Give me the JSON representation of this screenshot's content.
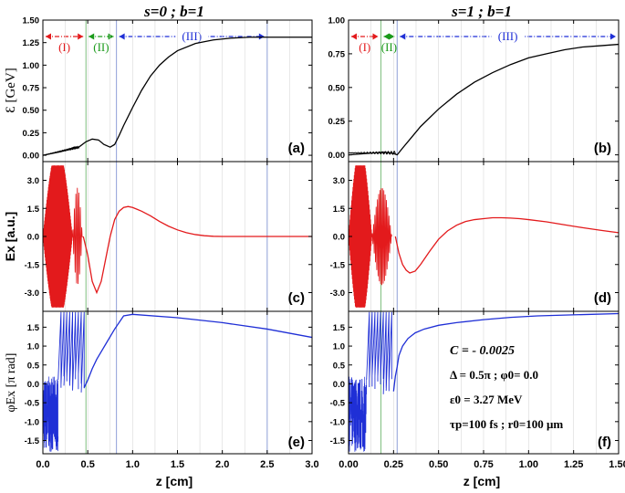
{
  "chart_data": [
    {
      "type": "line",
      "column": "left",
      "title": "s=0 ; b=1",
      "xlabel": "z [cm]",
      "xlim": [
        0,
        3.0
      ],
      "xticks": [
        "0.0",
        "0.5",
        "1.0",
        "1.5",
        "2.0",
        "2.5",
        "3.0"
      ],
      "region_boundaries": [
        0.48,
        0.82,
        2.5
      ],
      "panels": [
        {
          "id": "a",
          "panel_label": "(a)",
          "ylabel": "Ɛ [GeV]",
          "ylim": [
            -0.07,
            1.5
          ],
          "yticks": [
            "0.00",
            "0.25",
            "0.50",
            "0.75",
            "1.00",
            "1.25",
            "1.50"
          ],
          "regions": [
            {
              "label": "(I)",
              "x0": 0.0,
              "x1": 0.48,
              "color": "#e31a1c"
            },
            {
              "label": "(II)",
              "x0": 0.48,
              "x1": 0.82,
              "color": "#1a9a1a"
            },
            {
              "label": "(III)",
              "x0": 0.82,
              "x1": 2.5,
              "color": "#1f2fd6"
            }
          ],
          "series": [
            {
              "color": "#000000",
              "x": [
                0,
                0.1,
                0.2,
                0.3,
                0.35,
                0.4,
                0.48,
                0.55,
                0.62,
                0.68,
                0.75,
                0.8,
                0.85,
                0.9,
                1.0,
                1.1,
                1.2,
                1.3,
                1.4,
                1.5,
                1.7,
                1.9,
                2.1,
                2.3,
                2.5,
                3.0
              ],
              "y": [
                0.0,
                0.02,
                0.04,
                0.07,
                0.09,
                0.09,
                0.15,
                0.18,
                0.17,
                0.12,
                0.09,
                0.12,
                0.22,
                0.33,
                0.53,
                0.72,
                0.88,
                1.0,
                1.09,
                1.16,
                1.24,
                1.28,
                1.3,
                1.31,
                1.31,
                1.31
              ]
            }
          ]
        },
        {
          "id": "c",
          "panel_label": "(c)",
          "ylabel": "Ex [a.u.]",
          "ylim": [
            -4.0,
            4.0
          ],
          "yticks": [
            "-3.0",
            "-1.5",
            "0.0",
            "1.5",
            "3.0"
          ],
          "series": [
            {
              "color": "#e31a1c",
              "x": [
                0.45,
                0.5,
                0.55,
                0.6,
                0.65,
                0.7,
                0.75,
                0.8,
                0.85,
                0.9,
                0.95,
                1.0,
                1.05,
                1.1,
                1.2,
                1.3,
                1.4,
                1.5,
                1.6,
                1.7,
                1.8,
                1.9,
                2.0,
                2.2,
                2.5,
                3.0
              ],
              "y": [
                0.0,
                -1.0,
                -2.4,
                -3.0,
                -2.4,
                -1.2,
                0.0,
                0.9,
                1.35,
                1.55,
                1.6,
                1.55,
                1.45,
                1.35,
                1.1,
                0.8,
                0.55,
                0.35,
                0.2,
                0.1,
                0.04,
                0.01,
                0.0,
                0.0,
                0.0,
                0.0
              ]
            }
          ]
        },
        {
          "id": "e",
          "panel_label": "(e)",
          "ylabel": "φEx [π rad]",
          "ylim": [
            -1.85,
            1.92
          ],
          "yticks": [
            "-1.5",
            "-1.0",
            "-0.5",
            "0.0",
            "0.5",
            "1.0",
            "1.5"
          ],
          "series": [
            {
              "color": "#1f2fd6",
              "x": [
                0.46,
                0.5,
                0.55,
                0.6,
                0.7,
                0.8,
                0.9,
                1.0,
                1.5,
                2.0,
                2.5,
                3.0
              ],
              "y": [
                -0.1,
                0.1,
                0.4,
                0.65,
                1.05,
                1.45,
                1.8,
                1.84,
                1.75,
                1.62,
                1.45,
                1.23
              ]
            }
          ]
        }
      ]
    },
    {
      "type": "line",
      "column": "right",
      "title": "s=1 ; b=1",
      "xlabel": "z [cm]",
      "xlim": [
        0,
        1.5
      ],
      "xticks": [
        "0.00",
        "0.25",
        "0.50",
        "0.75",
        "1.00",
        "1.25",
        "1.50"
      ],
      "region_boundaries": [
        0.18,
        0.27
      ],
      "panels": [
        {
          "id": "b",
          "panel_label": "(b)",
          "ylabel": "",
          "ylim": [
            -0.05,
            1.0
          ],
          "yticks": [
            "0.00",
            "0.25",
            "0.50",
            "0.75",
            "1.00"
          ],
          "regions": [
            {
              "label": "(I)",
              "x0": 0.0,
              "x1": 0.18,
              "color": "#e31a1c"
            },
            {
              "label": "(II)",
              "x0": 0.18,
              "x1": 0.27,
              "color": "#1a9a1a"
            },
            {
              "label": "(III)",
              "x0": 0.27,
              "x1": 1.5,
              "color": "#1f2fd6"
            }
          ],
          "series": [
            {
              "color": "#000000",
              "x": [
                0,
                0.05,
                0.1,
                0.15,
                0.2,
                0.25,
                0.27,
                0.3,
                0.35,
                0.4,
                0.5,
                0.6,
                0.7,
                0.8,
                0.9,
                1.0,
                1.1,
                1.2,
                1.3,
                1.4,
                1.5
              ],
              "y": [
                0.0,
                0.005,
                0.01,
                0.015,
                0.02,
                0.01,
                0.0,
                0.05,
                0.13,
                0.21,
                0.34,
                0.45,
                0.54,
                0.61,
                0.67,
                0.72,
                0.75,
                0.78,
                0.8,
                0.81,
                0.82
              ]
            }
          ]
        },
        {
          "id": "d",
          "panel_label": "(d)",
          "ylabel": "",
          "ylim": [
            -4.0,
            4.0
          ],
          "yticks": [
            "-3.0",
            "-1.5",
            "0.0",
            "1.5",
            "3.0"
          ],
          "series": [
            {
              "color": "#e31a1c",
              "x": [
                0.26,
                0.28,
                0.3,
                0.32,
                0.34,
                0.37,
                0.4,
                0.45,
                0.5,
                0.55,
                0.6,
                0.65,
                0.7,
                0.75,
                0.8,
                0.85,
                0.9,
                0.95,
                1.0,
                1.1,
                1.2,
                1.3,
                1.4,
                1.5
              ],
              "y": [
                0.0,
                -0.9,
                -1.5,
                -1.8,
                -1.95,
                -1.85,
                -1.5,
                -0.8,
                -0.15,
                0.3,
                0.6,
                0.8,
                0.9,
                0.95,
                1.0,
                1.0,
                0.98,
                0.95,
                0.9,
                0.78,
                0.62,
                0.47,
                0.33,
                0.2
              ]
            }
          ]
        },
        {
          "id": "f",
          "panel_label": "(f)",
          "ylabel": "",
          "ylim": [
            -1.85,
            1.92
          ],
          "yticks": [
            "-1.5",
            "-1.0",
            "-0.5",
            "0.0",
            "0.5",
            "1.0",
            "1.5"
          ],
          "series": [
            {
              "color": "#1f2fd6",
              "x": [
                0.25,
                0.26,
                0.27,
                0.28,
                0.3,
                0.33,
                0.37,
                0.42,
                0.5,
                0.6,
                0.75,
                0.9,
                1.05,
                1.2,
                1.35,
                1.5
              ],
              "y": [
                -0.2,
                0.2,
                0.45,
                0.75,
                1.0,
                1.2,
                1.35,
                1.45,
                1.55,
                1.62,
                1.7,
                1.76,
                1.8,
                1.82,
                1.84,
                1.86
              ]
            }
          ]
        }
      ]
    }
  ],
  "annotation": {
    "line1": "C = - 0.0025",
    "line2": "Δ = 0.5π ; φ0= 0.0",
    "line3": "ε0 = 3.27 MeV",
    "line4": "τp=100 fs ; r0=100 μm"
  }
}
